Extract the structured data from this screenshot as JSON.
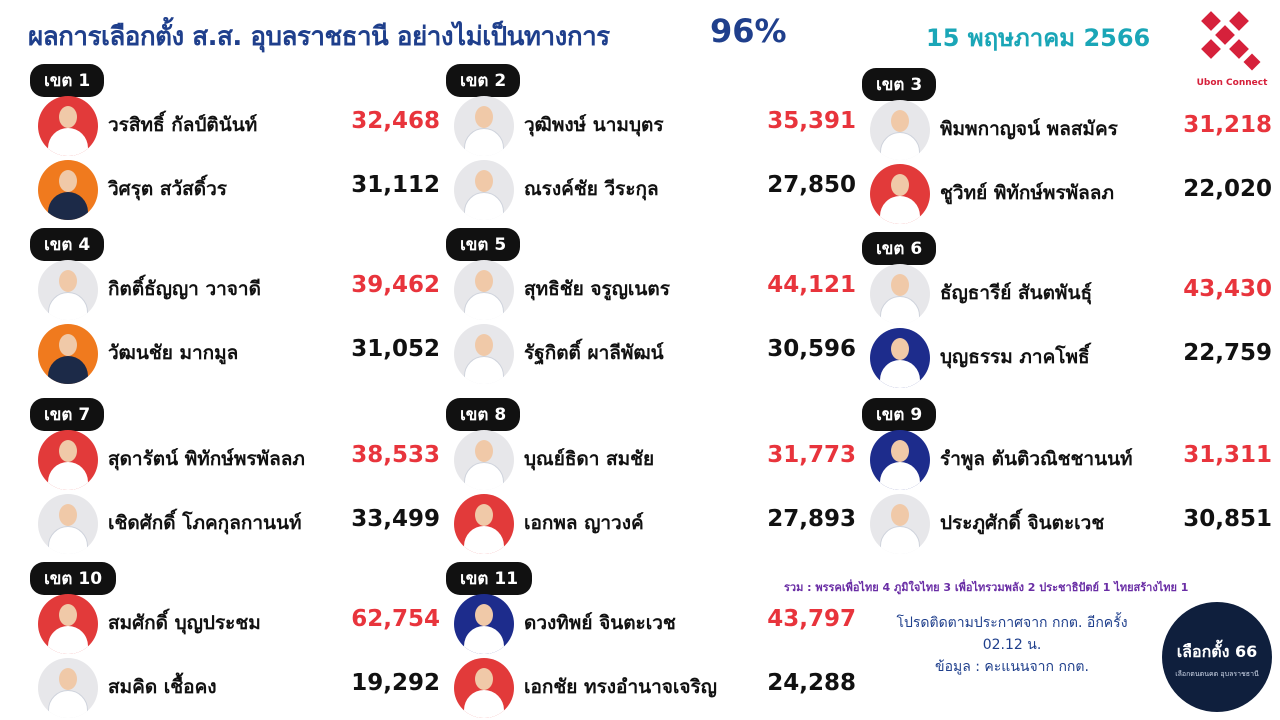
{
  "header": {
    "title": "ผลการเลือกตั้ง ส.ส. อุบลราชธานี อย่างไม่เป็นทางการ",
    "percent": "96%",
    "date": "15 พฤษภาคม 2566"
  },
  "brand": {
    "logo_text": "Ubon Connect",
    "colors": {
      "title": "#1f3f8c",
      "date": "#1aa6b7",
      "winner": "#e8343c"
    }
  },
  "districts": [
    {
      "label": "เขต 1",
      "candidates": [
        {
          "name": "วรสิทธิ์ กัลป์ตินันท์",
          "votes": "32,468"
        },
        {
          "name": "วิศรุต สวัสดิ์วร",
          "votes": "31,112"
        }
      ]
    },
    {
      "label": "เขต 2",
      "candidates": [
        {
          "name": "วุฒิพงษ์ นามบุตร",
          "votes": "35,391"
        },
        {
          "name": "ณรงค์ชัย วีระกุล",
          "votes": "27,850"
        }
      ]
    },
    {
      "label": "เขต 3",
      "candidates": [
        {
          "name": "พิมพกาญจน์ พลสมัคร",
          "votes": "31,218"
        },
        {
          "name": "ชูวิทย์ พิทักษ์พรพัลลภ",
          "votes": "22,020"
        }
      ]
    },
    {
      "label": "เขต 4",
      "candidates": [
        {
          "name": "กิตติ์ธัญญา วาจาดี",
          "votes": "39,462"
        },
        {
          "name": "วัฒนชัย มากมูล",
          "votes": "31,052"
        }
      ]
    },
    {
      "label": "เขต 5",
      "candidates": [
        {
          "name": "สุทธิชัย จรูญเนตร",
          "votes": "44,121"
        },
        {
          "name": "รัฐกิตติ์ ผาลีพัฒน์",
          "votes": "30,596"
        }
      ]
    },
    {
      "label": "เขต 6",
      "candidates": [
        {
          "name": "ธัญธารีย์ สันตพันธุ์",
          "votes": "43,430"
        },
        {
          "name": "บุญธรรม ภาคโพธิ์",
          "votes": "22,759"
        }
      ]
    },
    {
      "label": "เขต 7",
      "candidates": [
        {
          "name": "สุดารัตน์ พิทักษ์พรพัลลภ",
          "votes": "38,533"
        },
        {
          "name": "เชิดศักดิ์ โภคกุลกานนท์",
          "votes": "33,499"
        }
      ]
    },
    {
      "label": "เขต 8",
      "candidates": [
        {
          "name": "บุณย์ธิดา สมชัย",
          "votes": "31,773"
        },
        {
          "name": "เอกพล ญาวงค์",
          "votes": "27,893"
        }
      ]
    },
    {
      "label": "เขต 9",
      "candidates": [
        {
          "name": "รำพูล ตันติวณิชชานนท์",
          "votes": "31,311"
        },
        {
          "name": "ประภูศักดิ์ จินตะเวช",
          "votes": "30,851"
        }
      ]
    },
    {
      "label": "เขต 10",
      "candidates": [
        {
          "name": "สมศักดิ์ บุญประชม",
          "votes": "62,754"
        },
        {
          "name": "สมคิด เชื้อคง",
          "votes": "19,292"
        }
      ]
    },
    {
      "label": "เขต 11",
      "candidates": [
        {
          "name": "ดวงทิพย์ จินตะเวช",
          "votes": "43,797"
        },
        {
          "name": "เอกชัย ทรงอำนาจเจริญ",
          "votes": "24,288"
        }
      ]
    }
  ],
  "summary": "รวม : พรรคเพื่อไทย 4 ภูมิใจไทย 3 เพื่อไทรวมพลัง 2 ประชาธิปัตย์ 1  ไทยสร้างไทย 1",
  "notice": {
    "line1": "โปรดติดตามประกาศจาก กกต. อีกครั้ง",
    "line2": "02.12 น.",
    "line3": "ข้อมูล : คะแนนจาก กกต."
  },
  "election_logo": {
    "title": "เลือกตั้ง 66",
    "subtitle": "เลือกตนตนคต อุบลราชธานี"
  }
}
